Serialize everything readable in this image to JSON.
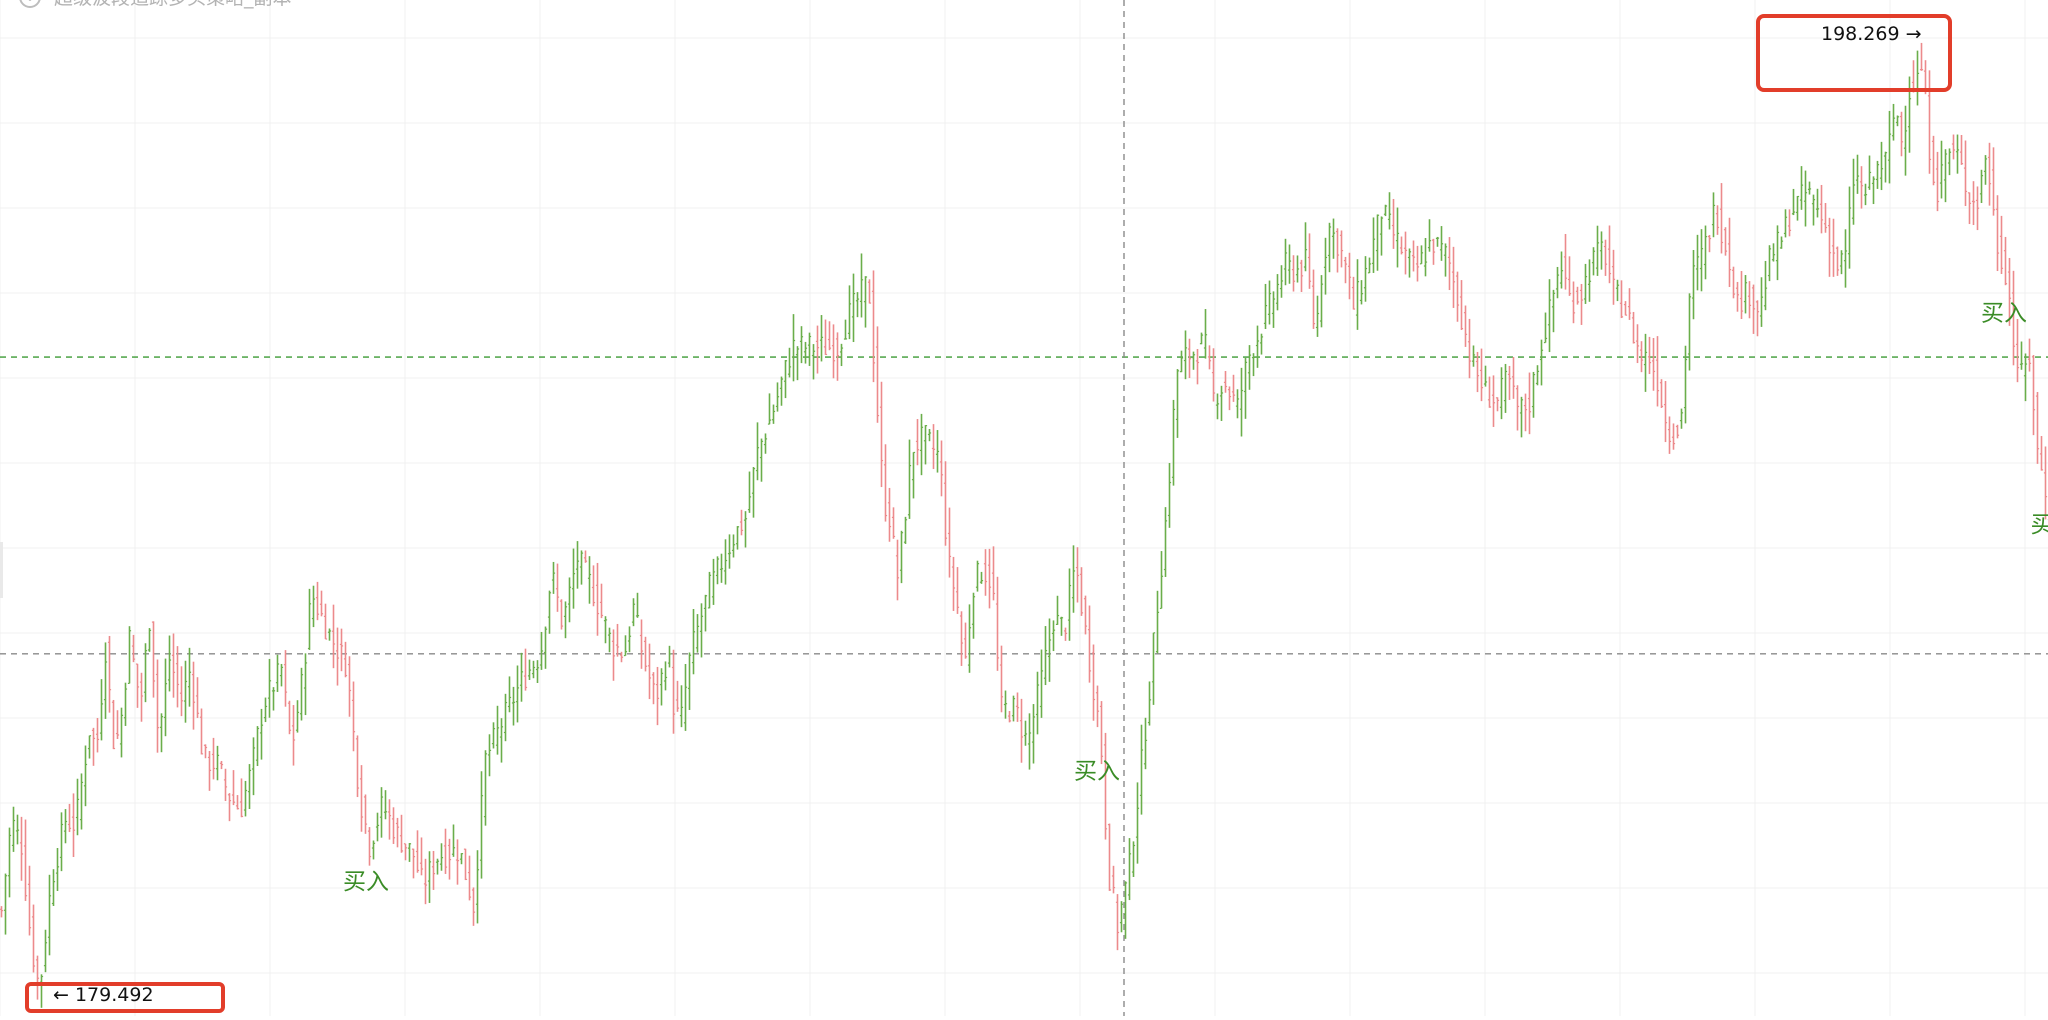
{
  "window": {
    "title": "超级波段追踪多头策略_副本",
    "title_icon": "chevron-circle-icon"
  },
  "colors": {
    "up": "#6aae4a",
    "down": "#ec8a8c",
    "grid": "#f0f0f0",
    "crosshair": "#8a8a8a",
    "level_line": "#3b9a33",
    "signal_text": "#3a8c26",
    "highlight_box": "#e23d2a"
  },
  "chart_data": {
    "type": "ohlc",
    "title": "超级波段追踪多头策略_副本",
    "xlabel": "",
    "ylabel": "",
    "ylim": [
      179.1,
      199.3
    ],
    "grid": true,
    "series_anchors": [
      [
        0,
        181.2
      ],
      [
        10,
        183.0
      ],
      [
        20,
        182.5
      ],
      [
        30,
        180.5
      ],
      [
        38,
        179.6
      ],
      [
        50,
        181.8
      ],
      [
        64,
        183.0
      ],
      [
        74,
        182.9
      ],
      [
        88,
        184.8
      ],
      [
        95,
        184.4
      ],
      [
        104,
        186.4
      ],
      [
        112,
        184.6
      ],
      [
        118,
        184.7
      ],
      [
        128,
        186.6
      ],
      [
        139,
        185.3
      ],
      [
        148,
        187.0
      ],
      [
        157,
        184.6
      ],
      [
        168,
        186.2
      ],
      [
        180,
        185.4
      ],
      [
        189,
        186.0
      ],
      [
        202,
        184.2
      ],
      [
        216,
        184.1
      ],
      [
        227,
        183.5
      ],
      [
        239,
        183.2
      ],
      [
        250,
        184.0
      ],
      [
        262,
        185.3
      ],
      [
        280,
        186.0
      ],
      [
        290,
        184.4
      ],
      [
        301,
        185.8
      ],
      [
        310,
        187.5
      ],
      [
        330,
        186.6
      ],
      [
        345,
        186.1
      ],
      [
        358,
        183.5
      ],
      [
        368,
        182.5
      ],
      [
        381,
        183.3
      ],
      [
        396,
        182.7
      ],
      [
        412,
        182.3
      ],
      [
        421,
        181.7
      ],
      [
        437,
        182.3
      ],
      [
        458,
        182.4
      ],
      [
        472,
        181.3
      ],
      [
        484,
        184.2
      ],
      [
        502,
        185.0
      ],
      [
        521,
        185.8
      ],
      [
        539,
        186.3
      ],
      [
        550,
        187.9
      ],
      [
        561,
        186.9
      ],
      [
        576,
        188.2
      ],
      [
        591,
        187.6
      ],
      [
        610,
        186.5
      ],
      [
        623,
        186.3
      ],
      [
        632,
        187.2
      ],
      [
        641,
        186.3
      ],
      [
        654,
        185.4
      ],
      [
        667,
        186.3
      ],
      [
        672,
        185.3
      ],
      [
        679,
        184.9
      ],
      [
        689,
        186.3
      ],
      [
        708,
        187.6
      ],
      [
        734,
        188.7
      ],
      [
        744,
        189.0
      ],
      [
        756,
        190.3
      ],
      [
        771,
        191.1
      ],
      [
        791,
        192.4
      ],
      [
        813,
        192.4
      ],
      [
        836,
        192.4
      ],
      [
        849,
        193.1
      ],
      [
        867,
        193.7
      ],
      [
        882,
        189.4
      ],
      [
        890,
        188.9
      ],
      [
        895,
        187.7
      ],
      [
        902,
        188.8
      ],
      [
        911,
        190.4
      ],
      [
        923,
        190.6
      ],
      [
        938,
        190.2
      ],
      [
        947,
        188.1
      ],
      [
        955,
        187.4
      ],
      [
        963,
        186.0
      ],
      [
        972,
        187.7
      ],
      [
        981,
        188.0
      ],
      [
        991,
        187.7
      ],
      [
        999,
        185.2
      ],
      [
        1014,
        185.2
      ],
      [
        1026,
        184.5
      ],
      [
        1039,
        185.7
      ],
      [
        1052,
        187.0
      ],
      [
        1063,
        186.8
      ],
      [
        1074,
        188.1
      ],
      [
        1088,
        186.2
      ],
      [
        1099,
        184.7
      ],
      [
        1107,
        182.0
      ],
      [
        1116,
        180.9
      ],
      [
        1127,
        181.9
      ],
      [
        1136,
        183.4
      ],
      [
        1146,
        185.2
      ],
      [
        1156,
        187.3
      ],
      [
        1166,
        189.3
      ],
      [
        1175,
        191.9
      ],
      [
        1184,
        192.2
      ],
      [
        1193,
        192.3
      ],
      [
        1203,
        192.5
      ],
      [
        1212,
        191.4
      ],
      [
        1223,
        191.7
      ],
      [
        1236,
        191.2
      ],
      [
        1247,
        192.2
      ],
      [
        1256,
        192.6
      ],
      [
        1270,
        193.3
      ],
      [
        1284,
        194.0
      ],
      [
        1294,
        193.9
      ],
      [
        1305,
        194.1
      ],
      [
        1314,
        192.6
      ],
      [
        1319,
        193.7
      ],
      [
        1327,
        194.8
      ],
      [
        1338,
        194.4
      ],
      [
        1345,
        193.9
      ],
      [
        1352,
        193.2
      ],
      [
        1366,
        194.0
      ],
      [
        1380,
        195.1
      ],
      [
        1398,
        194.4
      ],
      [
        1414,
        193.9
      ],
      [
        1430,
        194.5
      ],
      [
        1446,
        194.2
      ],
      [
        1457,
        193.3
      ],
      [
        1470,
        192.1
      ],
      [
        1484,
        191.5
      ],
      [
        1496,
        191.3
      ],
      [
        1506,
        191.8
      ],
      [
        1517,
        191.1
      ],
      [
        1528,
        191.3
      ],
      [
        1539,
        192.4
      ],
      [
        1548,
        193.1
      ],
      [
        1559,
        194.1
      ],
      [
        1569,
        193.3
      ],
      [
        1580,
        193.5
      ],
      [
        1591,
        194.1
      ],
      [
        1602,
        194.4
      ],
      [
        1612,
        193.5
      ],
      [
        1625,
        193.1
      ],
      [
        1639,
        192.2
      ],
      [
        1648,
        192.2
      ],
      [
        1657,
        191.7
      ],
      [
        1666,
        190.7
      ],
      [
        1679,
        190.8
      ],
      [
        1689,
        193.7
      ],
      [
        1702,
        194.3
      ],
      [
        1714,
        195.2
      ],
      [
        1726,
        194.3
      ],
      [
        1736,
        193.3
      ],
      [
        1748,
        193.5
      ],
      [
        1758,
        193.1
      ],
      [
        1769,
        194.2
      ],
      [
        1779,
        194.5
      ],
      [
        1790,
        195.1
      ],
      [
        1806,
        195.5
      ],
      [
        1822,
        194.9
      ],
      [
        1836,
        194.0
      ],
      [
        1844,
        194.2
      ],
      [
        1853,
        195.9
      ],
      [
        1862,
        195.4
      ],
      [
        1878,
        196.0
      ],
      [
        1885,
        196.1
      ],
      [
        1894,
        197.2
      ],
      [
        1901,
        196.4
      ],
      [
        1907,
        197.5
      ],
      [
        1915,
        197.7
      ],
      [
        1921,
        198.0
      ],
      [
        1927,
        196.5
      ],
      [
        1936,
        195.5
      ],
      [
        1945,
        196.3
      ],
      [
        1956,
        196.2
      ],
      [
        1966,
        195.5
      ],
      [
        1975,
        195.2
      ],
      [
        1985,
        196.3
      ],
      [
        1995,
        194.5
      ],
      [
        2006,
        193.8
      ],
      [
        2013,
        192.3
      ],
      [
        2020,
        191.8
      ],
      [
        2028,
        192.2
      ],
      [
        2036,
        190.3
      ],
      [
        2044,
        189.6
      ]
    ],
    "crosshair_value": 192.2,
    "reference_lines": [
      {
        "value": 192.2,
        "style": "dashed",
        "color": "level"
      },
      {
        "value": 186.3,
        "style": "dashed",
        "color": "gray"
      }
    ],
    "signals": [
      {
        "text": "买入",
        "index": 368,
        "value": 182.5
      },
      {
        "text": "买入",
        "index": 1099,
        "value": 184.7
      },
      {
        "text": "买入",
        "index": 2006,
        "value": 193.8
      },
      {
        "text": "买",
        "index": 2044,
        "value": 189.6
      }
    ],
    "price_labels": {
      "high": {
        "text": "198.269 →",
        "index": 1921,
        "value": 198.269
      },
      "low": {
        "text": "← 179.492",
        "index": 38,
        "value": 179.492
      }
    }
  }
}
